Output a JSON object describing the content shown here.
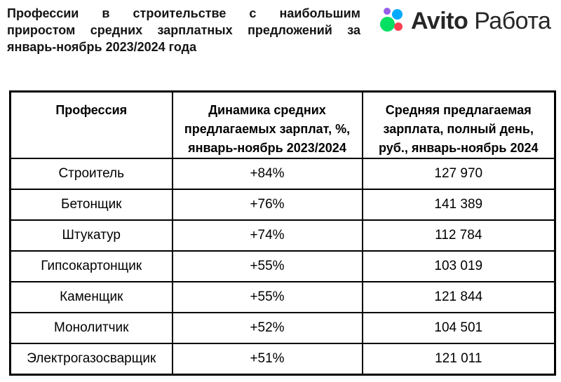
{
  "header": {
    "title_lines": [
      "Профессии в строительстве с наибольшим",
      "приростом средних зарплатных предложений за",
      "январь-ноябрь 2023/2024 года"
    ]
  },
  "logo": {
    "brand": "Avito",
    "product": "Работа",
    "text_color": "#262626",
    "colors": {
      "purple": "#965EEB",
      "blue": "#00AAFF",
      "green": "#04E061",
      "red": "#FF4053"
    }
  },
  "table": {
    "header_lines": {
      "col1": [
        "Профессия"
      ],
      "col2": [
        "Динамика средних",
        "предлагаемых зарплат, %,",
        "январь-ноябрь 2023/2024"
      ],
      "col3": [
        "Средняя предлагаемая",
        "зарплата, полный день,",
        "руб., январь-ноябрь 2024"
      ]
    }
  },
  "chart_data": {
    "type": "table",
    "title": "Профессии в строительстве с наибольшим приростом средних зарплатных предложений за январь-ноябрь 2023/2024 года",
    "brand": "Avito Работа",
    "columns": [
      "Профессия",
      "Динамика средних предлагаемых зарплат, %, январь-ноябрь 2023/2024",
      "Средняя предлагаемая зарплата, полный день, руб., январь-ноябрь 2024"
    ],
    "rows": [
      [
        "Строитель",
        "+84%",
        "127 970"
      ],
      [
        "Бетонщик",
        "+76%",
        "141 389"
      ],
      [
        "Штукатур",
        "+74%",
        "112 784"
      ],
      [
        "Гипсокартонщик",
        "+55%",
        "103 019"
      ],
      [
        "Каменщик",
        "+55%",
        "121 844"
      ],
      [
        "Монолитчик",
        "+52%",
        "104 501"
      ],
      [
        "Электрогазосварщик",
        "+51%",
        "121 011"
      ]
    ],
    "growth_pct": [
      84,
      76,
      74,
      55,
      55,
      52,
      51
    ],
    "salary_rub": [
      127970,
      141389,
      112784,
      103019,
      121844,
      104501,
      121011
    ]
  }
}
